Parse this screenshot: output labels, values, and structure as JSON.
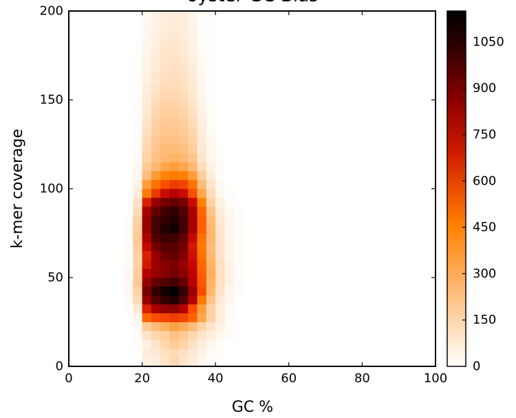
{
  "chart_data": {
    "type": "heatmap",
    "title": "oyster GC Bias",
    "xlabel": "GC %",
    "ylabel": "k-mer coverage",
    "xlim": [
      0,
      100
    ],
    "ylim": [
      0,
      200
    ],
    "xticks": [
      "0",
      "20",
      "40",
      "60",
      "80",
      "100"
    ],
    "yticks": [
      "0",
      "50",
      "100",
      "150",
      "200"
    ],
    "colormap": "gist_heat_r",
    "colorbar": {
      "min": 0,
      "max": 1150,
      "ticks": [
        "0",
        "150",
        "300",
        "450",
        "600",
        "750",
        "900",
        "1050"
      ]
    },
    "x_bin_edges": [
      0,
      100
    ],
    "x_bins": 40,
    "y_bins": 40,
    "grid": false,
    "values": [
      [
        0,
        0,
        0,
        0,
        0,
        0,
        0,
        0,
        30,
        40,
        60,
        90,
        60,
        40,
        20,
        8,
        0,
        0,
        0,
        0,
        0,
        0,
        0,
        0,
        0,
        0,
        0,
        0,
        0,
        0,
        0,
        0,
        0,
        0,
        0,
        0,
        0,
        0,
        0,
        0
      ],
      [
        0,
        0,
        0,
        0,
        0,
        0,
        0,
        0,
        40,
        50,
        70,
        80,
        70,
        50,
        30,
        10,
        5,
        0,
        0,
        0,
        0,
        0,
        0,
        0,
        0,
        0,
        0,
        0,
        0,
        0,
        0,
        0,
        0,
        0,
        0,
        0,
        0,
        0,
        0,
        0
      ],
      [
        0,
        0,
        0,
        0,
        0,
        0,
        0,
        5,
        30,
        60,
        90,
        120,
        100,
        70,
        40,
        20,
        10,
        0,
        0,
        0,
        0,
        0,
        0,
        0,
        0,
        0,
        0,
        0,
        0,
        0,
        0,
        0,
        0,
        0,
        0,
        0,
        0,
        0,
        0,
        0
      ],
      [
        0,
        0,
        0,
        0,
        0,
        0,
        0,
        10,
        60,
        90,
        110,
        140,
        120,
        90,
        60,
        40,
        20,
        10,
        0,
        0,
        0,
        0,
        0,
        0,
        0,
        0,
        0,
        0,
        0,
        0,
        0,
        0,
        0,
        0,
        0,
        0,
        0,
        0,
        0,
        0
      ],
      [
        0,
        0,
        0,
        0,
        0,
        0,
        0,
        15,
        120,
        150,
        180,
        210,
        190,
        150,
        100,
        60,
        30,
        10,
        0,
        0,
        0,
        0,
        0,
        0,
        0,
        0,
        0,
        0,
        0,
        0,
        0,
        0,
        0,
        0,
        0,
        0,
        0,
        0,
        0,
        0
      ],
      [
        0,
        0,
        0,
        0,
        0,
        0,
        0,
        20,
        350,
        400,
        420,
        440,
        420,
        350,
        200,
        100,
        40,
        10,
        0,
        0,
        0,
        0,
        0,
        0,
        0,
        0,
        0,
        0,
        0,
        0,
        0,
        0,
        0,
        0,
        0,
        0,
        0,
        0,
        0,
        0
      ],
      [
        0,
        0,
        0,
        0,
        0,
        0,
        5,
        50,
        500,
        640,
        700,
        720,
        600,
        400,
        220,
        100,
        40,
        10,
        0,
        0,
        0,
        0,
        0,
        0,
        0,
        0,
        0,
        0,
        0,
        0,
        0,
        0,
        0,
        0,
        0,
        0,
        0,
        0,
        0,
        0
      ],
      [
        0,
        0,
        0,
        0,
        0,
        0,
        10,
        80,
        700,
        900,
        1000,
        1050,
        900,
        600,
        300,
        130,
        50,
        20,
        0,
        0,
        0,
        0,
        0,
        0,
        0,
        0,
        0,
        0,
        0,
        0,
        0,
        0,
        0,
        0,
        0,
        0,
        0,
        0,
        0,
        0
      ],
      [
        0,
        0,
        0,
        0,
        0,
        0,
        15,
        100,
        800,
        1000,
        1100,
        1150,
        1000,
        700,
        400,
        160,
        60,
        20,
        5,
        0,
        0,
        0,
        0,
        0,
        0,
        0,
        0,
        0,
        0,
        0,
        0,
        0,
        0,
        0,
        0,
        0,
        0,
        0,
        0,
        0
      ],
      [
        0,
        0,
        0,
        0,
        0,
        0,
        15,
        120,
        700,
        850,
        900,
        950,
        850,
        600,
        380,
        170,
        70,
        30,
        10,
        0,
        0,
        0,
        0,
        0,
        0,
        0,
        0,
        0,
        0,
        0,
        0,
        0,
        0,
        0,
        0,
        0,
        0,
        0,
        0,
        0
      ],
      [
        0,
        0,
        0,
        0,
        0,
        0,
        15,
        110,
        600,
        700,
        760,
        800,
        740,
        580,
        360,
        180,
        70,
        30,
        10,
        0,
        0,
        0,
        0,
        0,
        0,
        0,
        0,
        0,
        0,
        0,
        0,
        0,
        0,
        0,
        0,
        0,
        0,
        0,
        0,
        0
      ],
      [
        0,
        0,
        0,
        0,
        0,
        0,
        10,
        100,
        520,
        680,
        740,
        780,
        700,
        560,
        340,
        170,
        70,
        30,
        10,
        0,
        0,
        0,
        0,
        0,
        0,
        0,
        0,
        0,
        0,
        0,
        0,
        0,
        0,
        0,
        0,
        0,
        0,
        0,
        0,
        0
      ],
      [
        0,
        0,
        0,
        0,
        0,
        0,
        10,
        100,
        500,
        700,
        820,
        850,
        760,
        540,
        320,
        160,
        60,
        25,
        10,
        0,
        0,
        0,
        0,
        0,
        0,
        0,
        0,
        0,
        0,
        0,
        0,
        0,
        0,
        0,
        0,
        0,
        0,
        0,
        0,
        0
      ],
      [
        0,
        0,
        0,
        0,
        0,
        0,
        10,
        110,
        560,
        800,
        900,
        880,
        800,
        520,
        300,
        150,
        60,
        25,
        10,
        0,
        0,
        0,
        0,
        0,
        0,
        0,
        0,
        0,
        0,
        0,
        0,
        0,
        0,
        0,
        0,
        0,
        0,
        0,
        0,
        0
      ],
      [
        0,
        0,
        0,
        0,
        0,
        0,
        10,
        120,
        640,
        900,
        980,
        950,
        860,
        560,
        320,
        160,
        60,
        20,
        10,
        0,
        0,
        0,
        0,
        0,
        0,
        0,
        0,
        0,
        0,
        0,
        0,
        0,
        0,
        0,
        0,
        0,
        0,
        0,
        0,
        0
      ],
      [
        0,
        0,
        0,
        0,
        0,
        0,
        8,
        110,
        700,
        950,
        1050,
        1100,
        950,
        650,
        360,
        160,
        60,
        20,
        10,
        0,
        0,
        0,
        0,
        0,
        0,
        0,
        0,
        0,
        0,
        0,
        0,
        0,
        0,
        0,
        0,
        0,
        0,
        0,
        0,
        0
      ],
      [
        0,
        0,
        0,
        0,
        0,
        0,
        5,
        100,
        700,
        950,
        1000,
        1050,
        950,
        650,
        360,
        150,
        50,
        20,
        5,
        0,
        0,
        0,
        0,
        0,
        0,
        0,
        0,
        0,
        0,
        0,
        0,
        0,
        0,
        0,
        0,
        0,
        0,
        0,
        0,
        0
      ],
      [
        0,
        0,
        0,
        0,
        0,
        0,
        3,
        80,
        650,
        850,
        950,
        1000,
        900,
        650,
        340,
        130,
        40,
        15,
        5,
        0,
        0,
        0,
        0,
        0,
        0,
        0,
        0,
        0,
        0,
        0,
        0,
        0,
        0,
        0,
        0,
        0,
        0,
        0,
        0,
        0
      ],
      [
        0,
        0,
        0,
        0,
        0,
        0,
        0,
        60,
        500,
        700,
        800,
        850,
        800,
        550,
        280,
        100,
        30,
        10,
        0,
        0,
        0,
        0,
        0,
        0,
        0,
        0,
        0,
        0,
        0,
        0,
        0,
        0,
        0,
        0,
        0,
        0,
        0,
        0,
        0,
        0
      ],
      [
        0,
        0,
        0,
        0,
        0,
        0,
        0,
        40,
        300,
        450,
        550,
        600,
        550,
        400,
        200,
        80,
        20,
        5,
        0,
        0,
        0,
        0,
        0,
        0,
        0,
        0,
        0,
        0,
        0,
        0,
        0,
        0,
        0,
        0,
        0,
        0,
        0,
        0,
        0,
        0
      ],
      [
        0,
        0,
        0,
        0,
        0,
        0,
        0,
        30,
        220,
        320,
        400,
        440,
        420,
        320,
        150,
        60,
        15,
        0,
        0,
        0,
        0,
        0,
        0,
        0,
        0,
        0,
        0,
        0,
        0,
        0,
        0,
        0,
        0,
        0,
        0,
        0,
        0,
        0,
        0,
        0
      ],
      [
        0,
        0,
        0,
        0,
        0,
        0,
        0,
        20,
        150,
        230,
        280,
        300,
        290,
        220,
        110,
        40,
        10,
        0,
        0,
        0,
        0,
        0,
        0,
        0,
        0,
        0,
        0,
        0,
        0,
        0,
        0,
        0,
        0,
        0,
        0,
        0,
        0,
        0,
        0,
        0
      ],
      [
        0,
        0,
        0,
        0,
        0,
        0,
        0,
        15,
        120,
        160,
        200,
        220,
        200,
        160,
        80,
        30,
        10,
        0,
        0,
        0,
        0,
        0,
        0,
        0,
        0,
        0,
        0,
        0,
        0,
        0,
        0,
        0,
        0,
        0,
        0,
        0,
        0,
        0,
        0,
        0
      ],
      [
        0,
        0,
        0,
        0,
        0,
        0,
        0,
        10,
        100,
        140,
        160,
        170,
        160,
        130,
        60,
        20,
        5,
        0,
        0,
        0,
        0,
        0,
        0,
        0,
        0,
        0,
        0,
        0,
        0,
        0,
        0,
        0,
        0,
        0,
        0,
        0,
        0,
        0,
        0,
        0
      ],
      [
        0,
        0,
        0,
        0,
        0,
        0,
        0,
        10,
        90,
        130,
        150,
        150,
        140,
        110,
        50,
        20,
        5,
        0,
        0,
        0,
        0,
        0,
        0,
        0,
        0,
        0,
        0,
        0,
        0,
        0,
        0,
        0,
        0,
        0,
        0,
        0,
        0,
        0,
        0,
        0
      ],
      [
        0,
        0,
        0,
        0,
        0,
        0,
        0,
        8,
        80,
        120,
        140,
        140,
        130,
        100,
        45,
        15,
        0,
        0,
        0,
        0,
        0,
        0,
        0,
        0,
        0,
        0,
        0,
        0,
        0,
        0,
        0,
        0,
        0,
        0,
        0,
        0,
        0,
        0,
        0,
        0
      ],
      [
        0,
        0,
        0,
        0,
        0,
        0,
        0,
        5,
        70,
        110,
        130,
        130,
        120,
        90,
        40,
        10,
        0,
        0,
        0,
        0,
        0,
        0,
        0,
        0,
        0,
        0,
        0,
        0,
        0,
        0,
        0,
        0,
        0,
        0,
        0,
        0,
        0,
        0,
        0,
        0
      ],
      [
        0,
        0,
        0,
        0,
        0,
        0,
        0,
        5,
        60,
        100,
        120,
        120,
        110,
        80,
        35,
        10,
        0,
        0,
        0,
        0,
        0,
        0,
        0,
        0,
        0,
        0,
        0,
        0,
        0,
        0,
        0,
        0,
        0,
        0,
        0,
        0,
        0,
        0,
        0,
        0
      ],
      [
        0,
        0,
        0,
        0,
        0,
        0,
        0,
        5,
        50,
        90,
        110,
        110,
        100,
        70,
        30,
        10,
        0,
        0,
        0,
        0,
        0,
        0,
        0,
        0,
        0,
        0,
        0,
        0,
        0,
        0,
        0,
        0,
        0,
        0,
        0,
        0,
        0,
        0,
        0,
        0
      ],
      [
        0,
        0,
        0,
        0,
        0,
        0,
        0,
        5,
        45,
        80,
        100,
        100,
        90,
        60,
        25,
        10,
        0,
        0,
        0,
        0,
        0,
        0,
        0,
        0,
        0,
        0,
        0,
        0,
        0,
        0,
        0,
        0,
        0,
        0,
        0,
        0,
        0,
        0,
        0,
        0
      ],
      [
        0,
        0,
        0,
        0,
        0,
        0,
        0,
        3,
        40,
        70,
        90,
        90,
        80,
        55,
        20,
        8,
        0,
        0,
        0,
        0,
        0,
        0,
        0,
        0,
        0,
        0,
        0,
        0,
        0,
        0,
        0,
        0,
        0,
        0,
        0,
        0,
        0,
        0,
        0,
        0
      ],
      [
        0,
        0,
        0,
        0,
        0,
        0,
        0,
        3,
        35,
        60,
        80,
        80,
        70,
        50,
        18,
        5,
        0,
        0,
        0,
        0,
        0,
        0,
        0,
        0,
        0,
        0,
        0,
        0,
        0,
        0,
        0,
        0,
        0,
        0,
        0,
        0,
        0,
        0,
        0,
        0
      ],
      [
        0,
        0,
        0,
        0,
        0,
        0,
        0,
        3,
        30,
        55,
        70,
        75,
        65,
        45,
        15,
        5,
        0,
        0,
        0,
        0,
        0,
        0,
        0,
        0,
        0,
        0,
        0,
        0,
        0,
        0,
        0,
        0,
        0,
        0,
        0,
        0,
        0,
        0,
        0,
        0
      ],
      [
        0,
        0,
        0,
        0,
        0,
        0,
        0,
        3,
        28,
        50,
        65,
        70,
        60,
        40,
        14,
        5,
        0,
        0,
        0,
        0,
        0,
        0,
        0,
        0,
        0,
        0,
        0,
        0,
        0,
        0,
        0,
        0,
        0,
        0,
        0,
        0,
        0,
        0,
        0,
        0
      ],
      [
        0,
        0,
        0,
        0,
        0,
        0,
        0,
        3,
        25,
        45,
        60,
        65,
        55,
        35,
        12,
        4,
        0,
        0,
        0,
        0,
        0,
        0,
        0,
        0,
        0,
        0,
        0,
        0,
        0,
        0,
        0,
        0,
        0,
        0,
        0,
        0,
        0,
        0,
        0,
        0
      ],
      [
        0,
        0,
        0,
        0,
        0,
        0,
        0,
        2,
        22,
        40,
        55,
        60,
        50,
        30,
        10,
        3,
        0,
        0,
        0,
        0,
        0,
        0,
        0,
        0,
        0,
        0,
        0,
        0,
        0,
        0,
        0,
        0,
        0,
        0,
        0,
        0,
        0,
        0,
        0,
        0
      ],
      [
        0,
        0,
        0,
        0,
        0,
        0,
        0,
        2,
        20,
        35,
        50,
        55,
        45,
        28,
        9,
        3,
        0,
        0,
        0,
        0,
        0,
        0,
        0,
        0,
        0,
        0,
        0,
        0,
        0,
        0,
        0,
        0,
        0,
        0,
        0,
        0,
        0,
        0,
        0,
        0
      ],
      [
        0,
        0,
        0,
        0,
        0,
        0,
        0,
        2,
        18,
        32,
        45,
        50,
        42,
        26,
        8,
        2,
        0,
        0,
        0,
        0,
        0,
        0,
        0,
        0,
        0,
        0,
        0,
        0,
        0,
        0,
        0,
        0,
        0,
        0,
        0,
        0,
        0,
        0,
        0,
        0
      ],
      [
        0,
        0,
        0,
        0,
        0,
        0,
        0,
        2,
        16,
        30,
        42,
        46,
        40,
        24,
        7,
        2,
        0,
        0,
        0,
        0,
        0,
        0,
        0,
        0,
        0,
        0,
        0,
        0,
        0,
        0,
        0,
        0,
        0,
        0,
        0,
        0,
        0,
        0,
        0,
        0
      ],
      [
        0,
        0,
        0,
        0,
        0,
        0,
        0,
        2,
        15,
        28,
        40,
        44,
        38,
        22,
        6,
        2,
        0,
        0,
        0,
        0,
        0,
        0,
        0,
        0,
        0,
        0,
        0,
        0,
        0,
        0,
        0,
        0,
        0,
        0,
        0,
        0,
        0,
        0,
        0,
        0
      ]
    ]
  }
}
